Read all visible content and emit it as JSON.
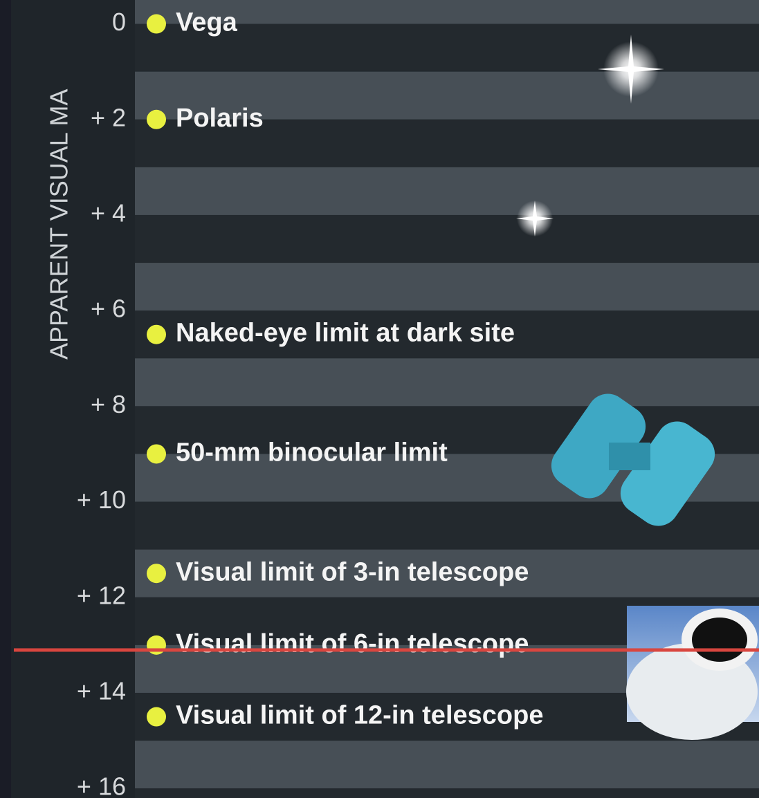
{
  "chart_data": {
    "type": "magnitude-scale",
    "y_label": "APPARENT VISUAL MA",
    "categories": [
      "Vega",
      "Polaris",
      "Naked-eye limit at dark site",
      "50-mm binocular limit",
      "Visual limit of 3-in telescope",
      "Visual limit of 6-in telescope",
      "Visual limit of 12-in telescope"
    ],
    "values": [
      0,
      2,
      6.5,
      9,
      11.5,
      13,
      14.5
    ],
    "color": "#e8f040",
    "ylim": [
      -0.5,
      16.2
    ],
    "yticks": [
      0,
      {
        "value": 2,
        "label": "+ 2"
      },
      {
        "value": 4,
        "label": "+ 4"
      },
      {
        "value": 6,
        "label": "+ 6"
      },
      {
        "value": 8,
        "label": "+ 8"
      },
      {
        "value": 10,
        "label": "+ 10"
      },
      {
        "value": 12,
        "label": "+ 12"
      },
      {
        "value": 14,
        "label": "+ 14"
      },
      {
        "value": 16,
        "label": "+ 16"
      }
    ]
  }
}
